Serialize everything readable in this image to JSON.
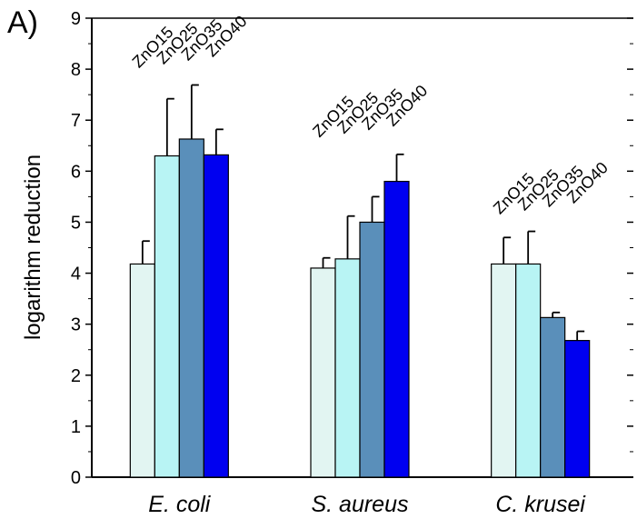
{
  "panel_label": "A)",
  "chart_data": {
    "type": "bar",
    "categories": [
      "E. coli",
      "S. aureus",
      "C. krusei"
    ],
    "ylabel": "logarithm reduction",
    "xlabel": "",
    "ylim": [
      0,
      9
    ],
    "yticks": [
      0,
      1,
      2,
      3,
      4,
      5,
      6,
      7,
      8,
      9
    ],
    "grid": false,
    "series": [
      {
        "name": "ZnO15",
        "color": "#e2f5f2",
        "values": [
          4.18,
          4.1,
          4.18
        ],
        "errors": [
          0.45,
          0.2,
          0.52
        ]
      },
      {
        "name": "ZnO25",
        "color": "#b8f4f4",
        "values": [
          6.3,
          4.28,
          4.18
        ],
        "errors": [
          1.12,
          0.84,
          0.64
        ]
      },
      {
        "name": "ZnO35",
        "color": "#5a8fba",
        "values": [
          6.63,
          5.0,
          3.13
        ],
        "errors": [
          1.06,
          0.5,
          0.1
        ]
      },
      {
        "name": "ZnO40",
        "color": "#0000f0",
        "values": [
          6.32,
          5.8,
          2.68
        ],
        "errors": [
          0.5,
          0.53,
          0.18
        ]
      }
    ]
  }
}
